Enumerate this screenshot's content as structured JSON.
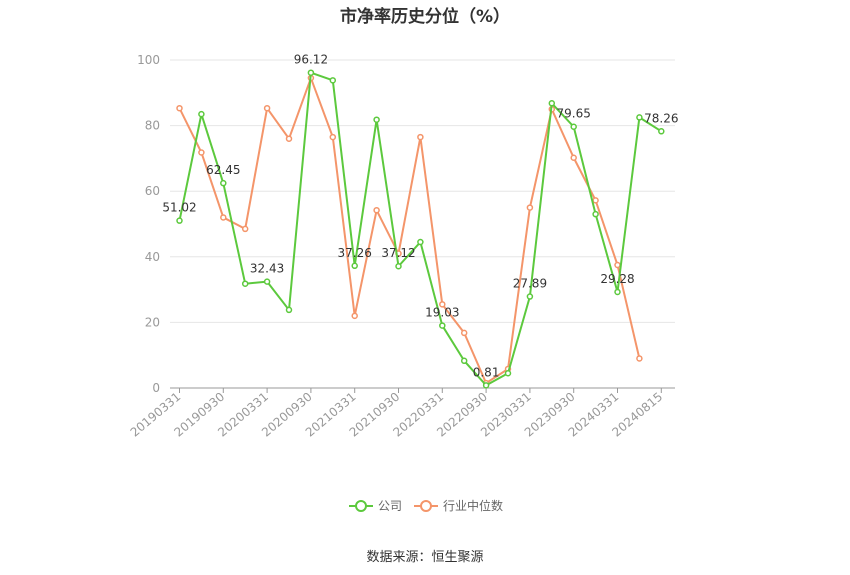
{
  "title": "市净率历史分位（%）",
  "source": "数据来源：恒生聚源",
  "chart_data": {
    "type": "line",
    "title": "市净率历史分位（%）",
    "ylim": [
      0,
      100
    ],
    "yticks": [
      0,
      20,
      40,
      60,
      80,
      100
    ],
    "xtick_labels": [
      "20190331",
      "20190930",
      "20200331",
      "20200930",
      "20210331",
      "20210930",
      "20220331",
      "20220930",
      "20230331",
      "20230930",
      "20240331",
      "20240815"
    ],
    "grid": true,
    "legend_position": "bottom",
    "series": [
      {
        "name": "公司",
        "color": "#5cc93d",
        "values": [
          51.02,
          83.5,
          62.45,
          31.8,
          32.43,
          23.8,
          96.12,
          93.8,
          37.26,
          81.8,
          37.12,
          44.5,
          19.03,
          8.3,
          0.81,
          4.5,
          27.89,
          86.8,
          79.65,
          53.0,
          29.28,
          82.5,
          78.26
        ],
        "labels": {
          "0": "51.02",
          "2": "62.45",
          "4": "32.43",
          "6": "96.12",
          "8": "37.26",
          "10": "37.12",
          "12": "19.03",
          "14": "0.81",
          "16": "27.89",
          "18": "79.65",
          "20": "29.28",
          "22": "78.26"
        }
      },
      {
        "name": "行业中位数",
        "color": "#f4956a",
        "values": [
          85.3,
          71.8,
          52.0,
          48.5,
          85.3,
          76.0,
          94.5,
          76.5,
          22.0,
          54.2,
          41.0,
          76.5,
          25.5,
          16.8,
          1.5,
          5.8,
          55.0,
          85.0,
          70.2,
          57.2,
          37.5,
          9.0
        ]
      }
    ]
  }
}
